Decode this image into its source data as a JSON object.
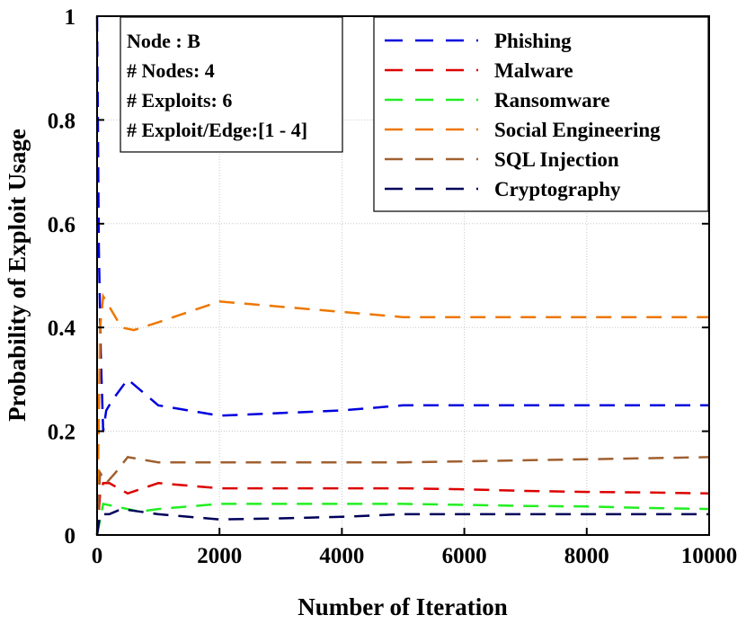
{
  "chart_data": {
    "type": "line",
    "title": "",
    "xlabel": "Number of Iteration",
    "ylabel": "Probability of Exploit Usage",
    "xlim": [
      0,
      10000
    ],
    "ylim": [
      0,
      1
    ],
    "x_ticks": [
      0,
      2000,
      4000,
      6000,
      8000,
      10000
    ],
    "x_tick_labels": [
      "0",
      "2000",
      "4000",
      "6000",
      "8000",
      "10000"
    ],
    "y_ticks": [
      0,
      0.2,
      0.4,
      0.6,
      0.8,
      1
    ],
    "y_tick_labels": [
      "0",
      "0.2",
      "0.4",
      "0.6",
      "0.8",
      "1"
    ],
    "grid": true,
    "legend_position": "top-right",
    "info_box": [
      "Node : B",
      "# Nodes: 4",
      "# Exploits: 6",
      "# Exploit/Edge:[1 - 4]"
    ],
    "series": [
      {
        "name": "Phishing",
        "color": "#0000dd",
        "points": [
          [
            0,
            1
          ],
          [
            30,
            0.55
          ],
          [
            60,
            0.35
          ],
          [
            100,
            0.2
          ],
          [
            150,
            0.24
          ],
          [
            250,
            0.26
          ],
          [
            500,
            0.3
          ],
          [
            1000,
            0.25
          ],
          [
            2000,
            0.23
          ],
          [
            3000,
            0.235
          ],
          [
            4000,
            0.24
          ],
          [
            5000,
            0.25
          ],
          [
            6000,
            0.25
          ],
          [
            7000,
            0.25
          ],
          [
            8000,
            0.25
          ],
          [
            9000,
            0.25
          ],
          [
            10000,
            0.25
          ]
        ]
      },
      {
        "name": "Malware",
        "color": "#dd0000",
        "points": [
          [
            0,
            0
          ],
          [
            50,
            0.08
          ],
          [
            100,
            0.1
          ],
          [
            200,
            0.1
          ],
          [
            500,
            0.08
          ],
          [
            1000,
            0.1
          ],
          [
            2000,
            0.09
          ],
          [
            3000,
            0.09
          ],
          [
            4000,
            0.09
          ],
          [
            5000,
            0.09
          ],
          [
            6000,
            0.088
          ],
          [
            7000,
            0.085
          ],
          [
            8000,
            0.083
          ],
          [
            9000,
            0.082
          ],
          [
            10000,
            0.08
          ]
        ]
      },
      {
        "name": "Ransomware",
        "color": "#22ee22",
        "points": [
          [
            0,
            0
          ],
          [
            100,
            0.06
          ],
          [
            300,
            0.055
          ],
          [
            700,
            0.045
          ],
          [
            1000,
            0.05
          ],
          [
            2000,
            0.06
          ],
          [
            3000,
            0.06
          ],
          [
            4000,
            0.06
          ],
          [
            5000,
            0.06
          ],
          [
            6000,
            0.058
          ],
          [
            7000,
            0.056
          ],
          [
            8000,
            0.055
          ],
          [
            9000,
            0.052
          ],
          [
            10000,
            0.05
          ]
        ]
      },
      {
        "name": "Social Engineering",
        "color": "#ee7700",
        "points": [
          [
            0,
            0
          ],
          [
            50,
            0.4
          ],
          [
            100,
            0.46
          ],
          [
            200,
            0.44
          ],
          [
            400,
            0.4
          ],
          [
            600,
            0.395
          ],
          [
            1000,
            0.41
          ],
          [
            2000,
            0.45
          ],
          [
            3000,
            0.44
          ],
          [
            4000,
            0.43
          ],
          [
            5000,
            0.42
          ],
          [
            6000,
            0.42
          ],
          [
            7000,
            0.42
          ],
          [
            8000,
            0.42
          ],
          [
            9000,
            0.42
          ],
          [
            10000,
            0.42
          ]
        ]
      },
      {
        "name": "SQL Injection",
        "color": "#a06030",
        "points": [
          [
            0,
            0
          ],
          [
            50,
            0.12
          ],
          [
            150,
            0.1
          ],
          [
            300,
            0.12
          ],
          [
            500,
            0.15
          ],
          [
            1000,
            0.14
          ],
          [
            2000,
            0.14
          ],
          [
            3000,
            0.14
          ],
          [
            4000,
            0.14
          ],
          [
            5000,
            0.14
          ],
          [
            6000,
            0.142
          ],
          [
            7000,
            0.144
          ],
          [
            8000,
            0.146
          ],
          [
            9000,
            0.148
          ],
          [
            10000,
            0.15
          ]
        ]
      },
      {
        "name": "Cryptography",
        "color": "#00005a",
        "points": [
          [
            0,
            0
          ],
          [
            50,
            0.04
          ],
          [
            100,
            0.04
          ],
          [
            200,
            0.04
          ],
          [
            400,
            0.05
          ],
          [
            1000,
            0.04
          ],
          [
            2000,
            0.03
          ],
          [
            3000,
            0.032
          ],
          [
            4000,
            0.035
          ],
          [
            5000,
            0.04
          ],
          [
            6000,
            0.04
          ],
          [
            7000,
            0.04
          ],
          [
            8000,
            0.04
          ],
          [
            9000,
            0.04
          ],
          [
            10000,
            0.04
          ]
        ]
      }
    ]
  }
}
